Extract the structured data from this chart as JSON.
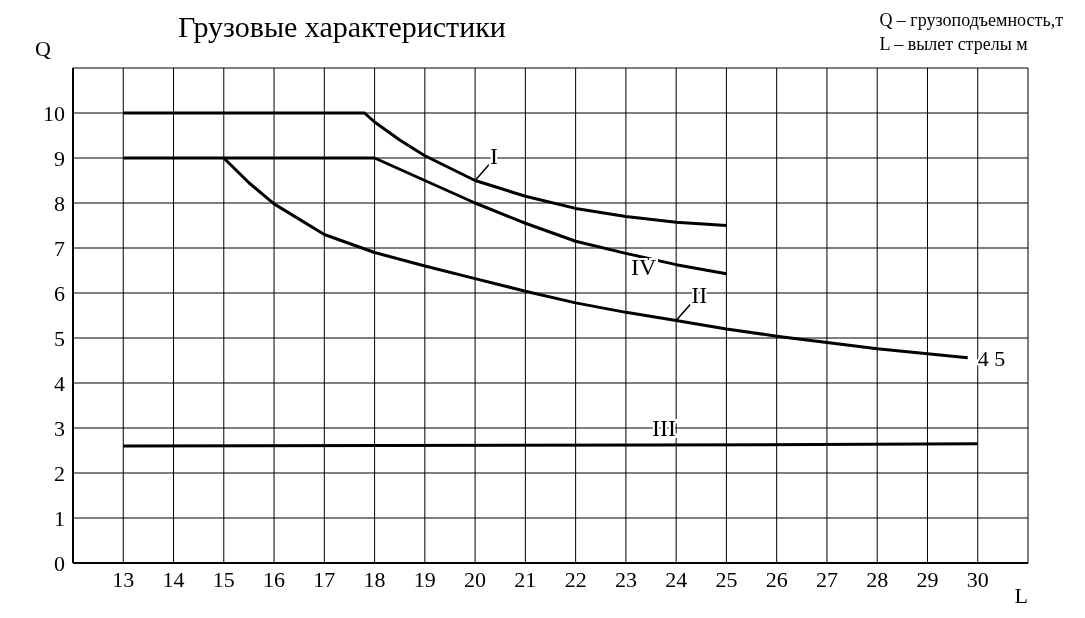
{
  "chart_data": {
    "type": "line",
    "title": "Грузовые характеристики",
    "xlabel": "L",
    "ylabel": "Q",
    "annotations": [
      "Q – грузоподъемность,т",
      "L – вылет стрелы м",
      {
        "text": "4 5",
        "x": 29.8,
        "y": 4.56
      }
    ],
    "series": [
      {
        "name": "I",
        "color": "#000000",
        "x": [
          13,
          17.8,
          18,
          18.5,
          19,
          20,
          21,
          22,
          23,
          24,
          25
        ],
        "values": [
          10,
          10,
          9.8,
          9.4,
          9.05,
          8.5,
          8.15,
          7.88,
          7.7,
          7.57,
          7.5
        ]
      },
      {
        "name": "II",
        "color": "#000000",
        "x": [
          15,
          15.5,
          16,
          17,
          18,
          19,
          20,
          21,
          22,
          23,
          24,
          25,
          26,
          27,
          28,
          29,
          29.8
        ],
        "values": [
          9,
          8.45,
          7.98,
          7.3,
          6.9,
          6.6,
          6.32,
          6.04,
          5.78,
          5.57,
          5.39,
          5.2,
          5.04,
          4.9,
          4.76,
          4.65,
          4.56
        ]
      },
      {
        "name": "III",
        "color": "#000000",
        "x": [
          13,
          23.5,
          30
        ],
        "values": [
          2.6,
          2.62,
          2.65
        ]
      },
      {
        "name": "IV",
        "color": "#000000",
        "x": [
          13,
          18,
          19,
          20,
          21,
          22,
          23,
          24,
          25
        ],
        "values": [
          9,
          9,
          8.5,
          8.0,
          7.55,
          7.15,
          6.88,
          6.63,
          6.43
        ]
      }
    ],
    "xlim": [
      12,
      31
    ],
    "xticks": [
      13,
      14,
      15,
      16,
      17,
      18,
      19,
      20,
      21,
      22,
      23,
      24,
      25,
      26,
      27,
      28,
      29,
      30
    ],
    "ylim": [
      0,
      11
    ],
    "yticks": [
      0,
      1,
      2,
      3,
      4,
      5,
      6,
      7,
      8,
      9,
      10
    ],
    "grid": true,
    "legend": false,
    "marker": "none",
    "line_style": "solid"
  }
}
